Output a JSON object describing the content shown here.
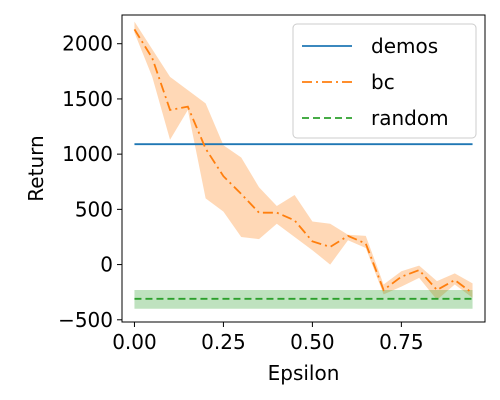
{
  "chart_data": {
    "type": "line",
    "xlabel": "Epsilon",
    "ylabel": "Return",
    "xlim": [
      -0.035,
      0.985
    ],
    "ylim": [
      -520,
      2260
    ],
    "xticks": [
      0.0,
      0.25,
      0.5,
      0.75
    ],
    "xtick_labels": [
      "0.00",
      "0.25",
      "0.50",
      "0.75"
    ],
    "yticks": [
      -500,
      0,
      500,
      1000,
      1500,
      2000
    ],
    "ytick_labels": [
      "−500",
      "0",
      "500",
      "1000",
      "1500",
      "2000"
    ],
    "grid": false,
    "legend_position": "top-right",
    "series": [
      {
        "name": "demos",
        "style": "solid",
        "color": "#1f77b4",
        "x": [
          0.0,
          0.95
        ],
        "y": [
          1090,
          1090
        ]
      },
      {
        "name": "bc",
        "style": "dashdot",
        "color": "#ff7f0e",
        "x": [
          0.0,
          0.05,
          0.1,
          0.15,
          0.2,
          0.25,
          0.3,
          0.35,
          0.4,
          0.45,
          0.5,
          0.55,
          0.6,
          0.65,
          0.7,
          0.75,
          0.8,
          0.85,
          0.9,
          0.95
        ],
        "y": [
          2130,
          1870,
          1400,
          1430,
          1050,
          800,
          640,
          470,
          470,
          400,
          210,
          160,
          260,
          190,
          -230,
          -110,
          -50,
          -230,
          -140,
          -260
        ],
        "band_lower": [
          2100,
          1700,
          1130,
          1400,
          600,
          480,
          250,
          230,
          370,
          250,
          130,
          0,
          220,
          150,
          -270,
          -200,
          -120,
          -320,
          -180,
          -300
        ],
        "band_upper": [
          2200,
          1950,
          1700,
          1580,
          1460,
          1080,
          970,
          700,
          530,
          630,
          390,
          370,
          270,
          260,
          -180,
          -60,
          -10,
          -150,
          -80,
          -170
        ]
      },
      {
        "name": "random",
        "style": "dashed",
        "color": "#2ca02c",
        "x": [
          0.0,
          0.95
        ],
        "y": [
          -310,
          -310
        ],
        "band_lower": [
          -400,
          -400
        ],
        "band_upper": [
          -230,
          -230
        ]
      }
    ]
  }
}
